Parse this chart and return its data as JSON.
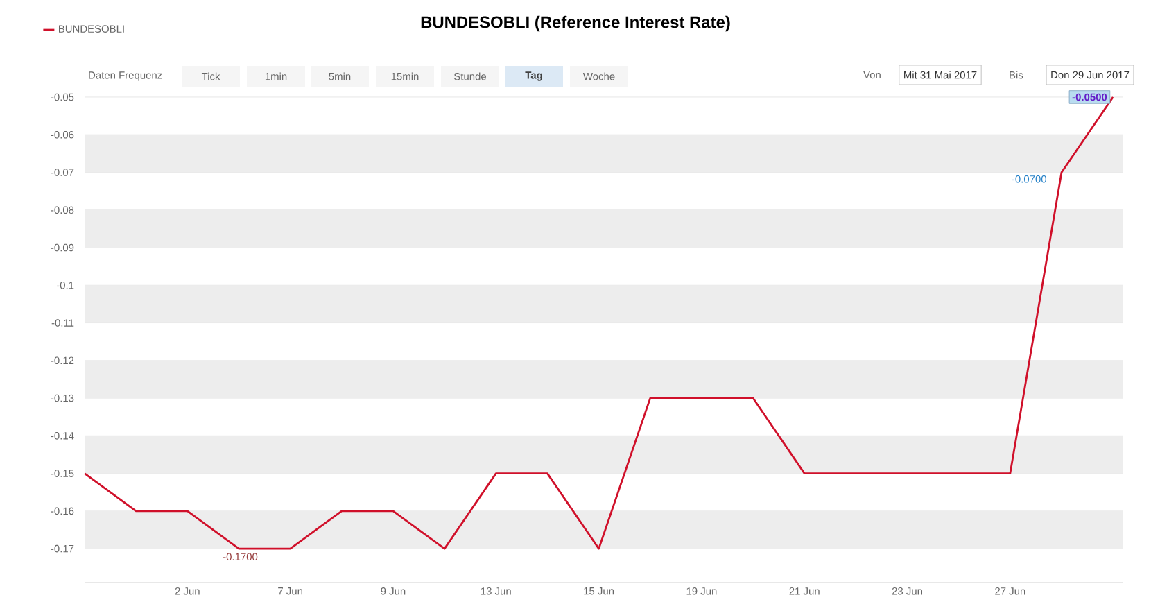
{
  "chart_data": {
    "type": "line",
    "title": "BUNDESOBLI (Reference Interest Rate)",
    "categories": [
      null,
      null,
      "2 Jun",
      null,
      "7 Jun",
      null,
      "9 Jun",
      null,
      "13 Jun",
      null,
      "15 Jun",
      null,
      "19 Jun",
      null,
      "21 Jun",
      null,
      "23 Jun",
      null,
      "27 Jun",
      null,
      null
    ],
    "series": [
      {
        "name": "BUNDESOBLI",
        "color": "#d0102a",
        "values": [
          -0.15,
          -0.16,
          -0.16,
          -0.17,
          -0.17,
          -0.16,
          -0.16,
          -0.17,
          -0.15,
          -0.15,
          -0.17,
          -0.13,
          -0.13,
          -0.13,
          -0.15,
          -0.15,
          -0.15,
          -0.15,
          -0.15,
          -0.07,
          -0.05
        ]
      }
    ],
    "ylim": [
      -0.179,
      -0.05
    ],
    "yticks": [
      {
        "value": -0.05,
        "label": "-0.05"
      },
      {
        "value": -0.06,
        "label": "-0.06"
      },
      {
        "value": -0.07,
        "label": "-0.07"
      },
      {
        "value": -0.08,
        "label": "-0.08"
      },
      {
        "value": -0.09,
        "label": "-0.09"
      },
      -0.1,
      {
        "value": -0.11,
        "label": "-0.11"
      },
      {
        "value": -0.12,
        "label": "-0.12"
      },
      {
        "value": -0.13,
        "label": "-0.13"
      },
      {
        "value": -0.14,
        "label": "-0.14"
      },
      {
        "value": -0.15,
        "label": "-0.15"
      },
      {
        "value": -0.16,
        "label": "-0.16"
      },
      {
        "value": -0.17,
        "label": "-0.17"
      }
    ],
    "grid": "y",
    "legend": "top left",
    "marker": "none",
    "line_style": "solid",
    "annotations": [
      "Daten Frequenz",
      "Tick",
      "1min",
      "5min",
      "15min",
      "Stunde",
      "Tag",
      "Woche",
      "Von",
      "Mit 31 Mai 2017",
      "Bis",
      "Don 29 Jun 2017",
      {
        "text": "-0.1700",
        "y": -0.17
      },
      "-0.0700",
      {
        "text": "-0.0500",
        "y": -0.05
      }
    ]
  }
}
